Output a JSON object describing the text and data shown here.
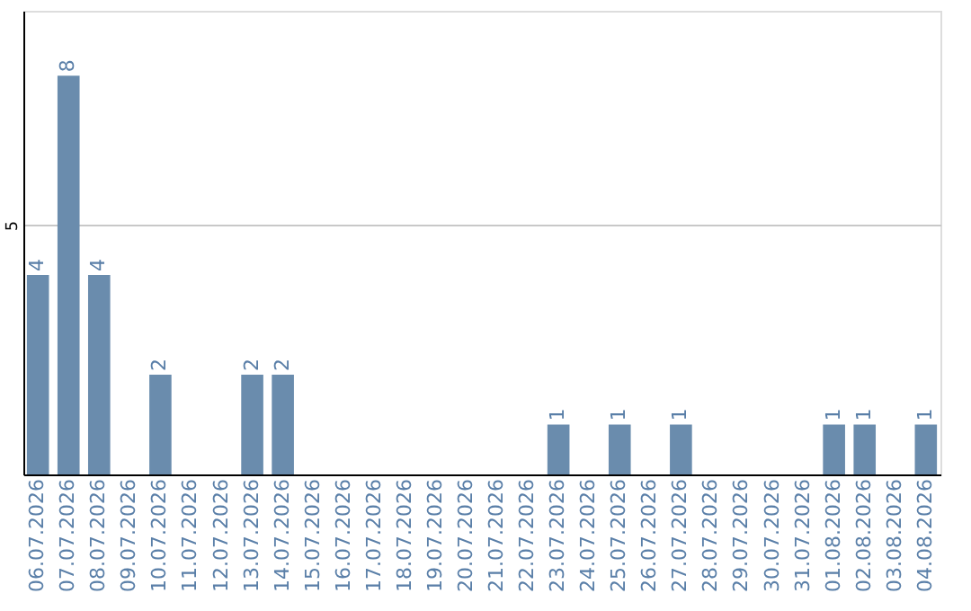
{
  "chart_data": {
    "type": "bar",
    "categories": [
      "06.07.2026",
      "07.07.2026",
      "08.07.2026",
      "09.07.2026",
      "10.07.2026",
      "11.07.2026",
      "12.07.2026",
      "13.07.2026",
      "14.07.2026",
      "15.07.2026",
      "16.07.2026",
      "17.07.2026",
      "18.07.2026",
      "19.07.2026",
      "20.07.2026",
      "21.07.2026",
      "22.07.2026",
      "23.07.2026",
      "24.07.2026",
      "25.07.2026",
      "26.07.2026",
      "27.07.2026",
      "28.07.2026",
      "29.07.2026",
      "30.07.2026",
      "31.07.2026",
      "01.08.2026",
      "02.08.2026",
      "03.08.2026",
      "04.08.2026"
    ],
    "values": [
      4,
      8,
      4,
      0,
      2,
      0,
      0,
      2,
      2,
      0,
      0,
      0,
      0,
      0,
      0,
      0,
      0,
      1,
      0,
      1,
      0,
      1,
      0,
      0,
      0,
      0,
      1,
      1,
      0,
      1
    ],
    "value_labels": [
      "4",
      "8",
      "4",
      null,
      "2",
      null,
      null,
      "2",
      "2",
      null,
      null,
      null,
      null,
      null,
      null,
      null,
      null,
      "1",
      null,
      "1",
      null,
      "1",
      null,
      null,
      null,
      null,
      "1",
      "1",
      null,
      "1"
    ],
    "color": "#6a8cad",
    "ylim": [
      0,
      9.3
    ],
    "yticks": [
      5
    ],
    "grid": "y"
  }
}
